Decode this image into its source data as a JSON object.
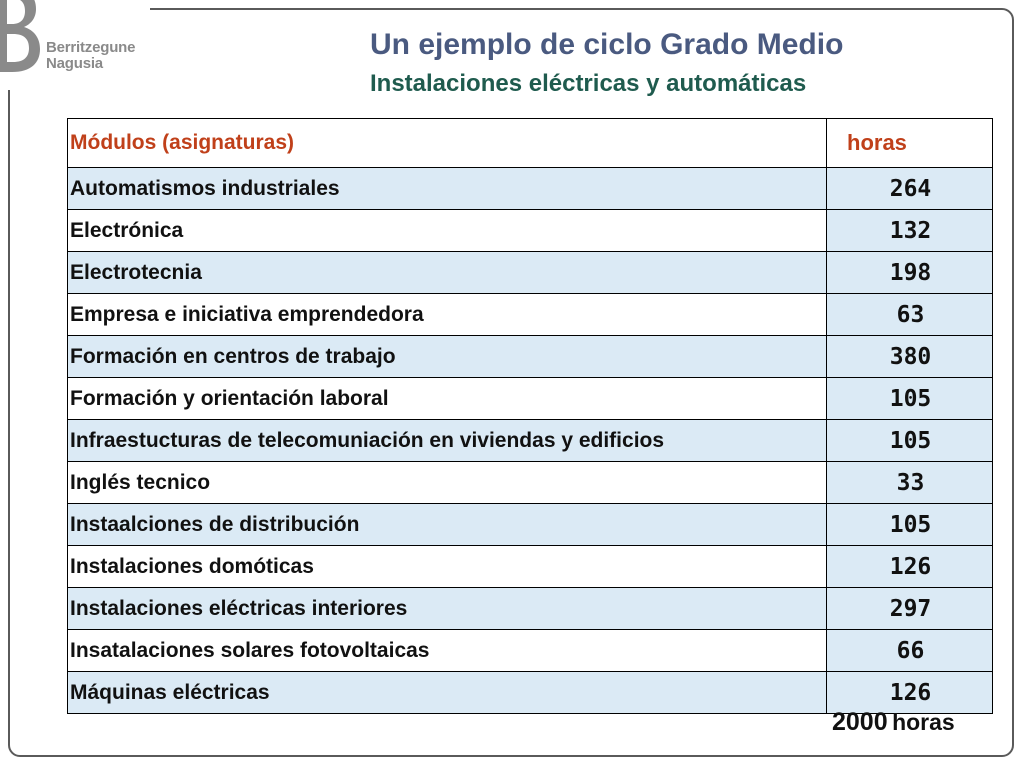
{
  "brand": {
    "line1": "Berritzegune",
    "line2": "Nagusia",
    "logo_color": "#8a8a8a"
  },
  "header": {
    "title": "Un ejemplo de ciclo Grado Medio",
    "subtitle": "Instalaciones eléctricas y automáticas",
    "title_color": "#4a5a80",
    "subtitle_color": "#1f5b4e"
  },
  "table": {
    "headers": {
      "module": "Módulos (asignaturas)",
      "hours": "horas"
    },
    "header_color": "#c0401a",
    "highlight_color": "#dbeaf5",
    "rows": [
      {
        "module": "Automatismos industriales",
        "hours": "264"
      },
      {
        "module": "Electrónica",
        "hours": "132"
      },
      {
        "module": "Electrotecnia",
        "hours": "198"
      },
      {
        "module": "Empresa e iniciativa emprendedora",
        "hours": "63"
      },
      {
        "module": "Formación en centros de trabajo",
        "hours": "380"
      },
      {
        "module": "Formación y orientación laboral",
        "hours": "105"
      },
      {
        "module": "Infraestucturas de telecomuniación en viviendas y edificios",
        "hours": "105"
      },
      {
        "module": "Inglés tecnico",
        "hours": "33"
      },
      {
        "module": "Instaalciones de distribución",
        "hours": "105"
      },
      {
        "module": "Instalaciones domóticas",
        "hours": "126"
      },
      {
        "module": "Instalaciones eléctricas interiores",
        "hours": "297"
      },
      {
        "module": "Insatalaciones solares fotovoltaicas",
        "hours": "66"
      },
      {
        "module": "Máquinas eléctricas",
        "hours": "126"
      }
    ]
  },
  "total": {
    "value": "2000",
    "unit": "horas"
  }
}
